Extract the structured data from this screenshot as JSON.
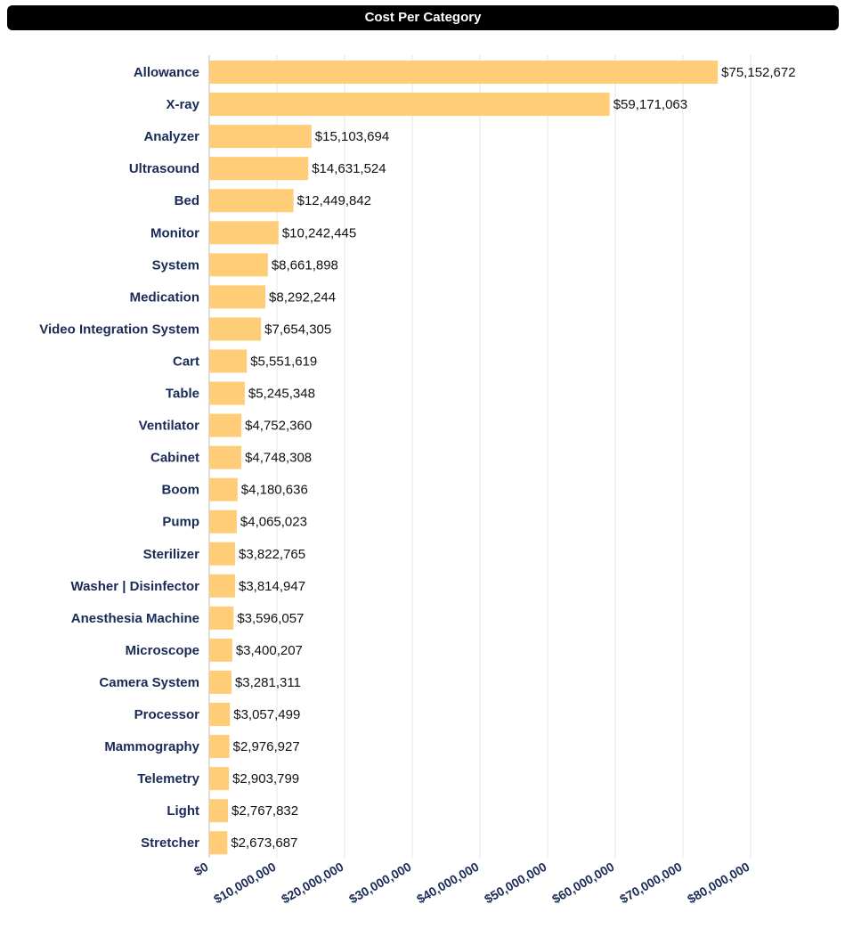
{
  "chart_data": {
    "type": "bar",
    "orientation": "horizontal",
    "title": "Cost Per Category",
    "categories": [
      "Allowance",
      "X-ray",
      "Analyzer",
      "Ultrasound",
      "Bed",
      "Monitor",
      "System",
      "Medication",
      "Video Integration System",
      "Cart",
      "Table",
      "Ventilator",
      "Cabinet",
      "Boom",
      "Pump",
      "Sterilizer",
      "Washer | Disinfector",
      "Anesthesia Machine",
      "Microscope",
      "Camera System",
      "Processor",
      "Mammography",
      "Telemetry",
      "Light",
      "Stretcher"
    ],
    "values": [
      75152672,
      59171063,
      15103694,
      14631524,
      12449842,
      10242445,
      8661898,
      8292244,
      7654305,
      5551619,
      5245348,
      4752360,
      4748308,
      4180636,
      4065023,
      3822765,
      3814947,
      3596057,
      3400207,
      3281311,
      3057499,
      2976927,
      2903799,
      2767832,
      2673687
    ],
    "value_labels": [
      "$75,152,672",
      "$59,171,063",
      "$15,103,694",
      "$14,631,524",
      "$12,449,842",
      "$10,242,445",
      "$8,661,898",
      "$8,292,244",
      "$7,654,305",
      "$5,551,619",
      "$5,245,348",
      "$4,752,360",
      "$4,748,308",
      "$4,180,636",
      "$4,065,023",
      "$3,822,765",
      "$3,814,947",
      "$3,596,057",
      "$3,400,207",
      "$3,281,311",
      "$3,057,499",
      "$2,976,927",
      "$2,903,799",
      "$2,767,832",
      "$2,673,687"
    ],
    "xlim": [
      0,
      80000000
    ],
    "xticks": [
      0,
      10000000,
      20000000,
      30000000,
      40000000,
      50000000,
      60000000,
      70000000,
      80000000
    ],
    "xtick_labels": [
      "$0",
      "$10,000,000",
      "$20,000,000",
      "$30,000,000",
      "$40,000,000",
      "$50,000,000",
      "$60,000,000",
      "$70,000,000",
      "$80,000,000"
    ],
    "grid": true,
    "colors": {
      "bar": "#ffcc77",
      "category_label": "#1a2a57",
      "tick_label": "#1a2a57",
      "gridline": "#e4e4e4",
      "axis": "#bbbbbb"
    }
  }
}
